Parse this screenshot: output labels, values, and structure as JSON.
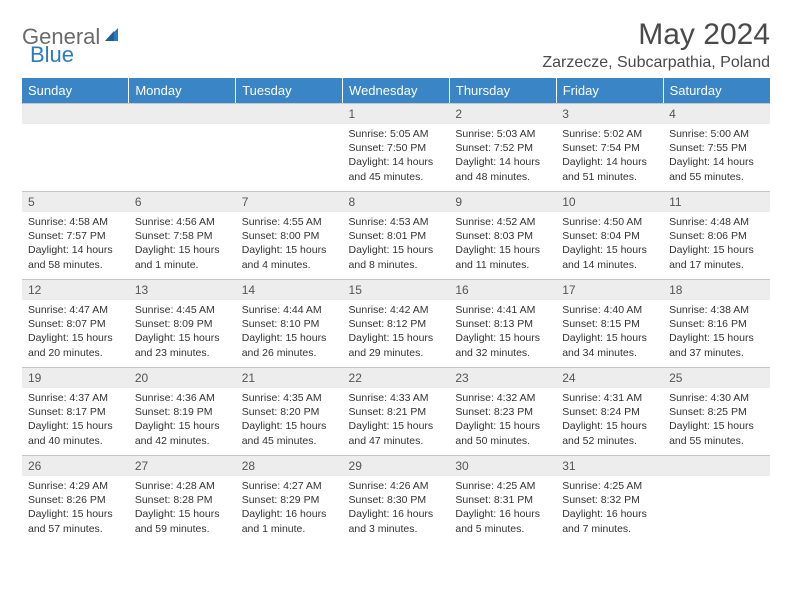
{
  "brand": {
    "general": "General",
    "blue": "Blue"
  },
  "title": "May 2024",
  "location": "Zarzecze, Subcarpathia, Poland",
  "dayHeaders": [
    "Sunday",
    "Monday",
    "Tuesday",
    "Wednesday",
    "Thursday",
    "Friday",
    "Saturday"
  ],
  "colors": {
    "headerBg": "#3a85c6",
    "headerText": "#ffffff",
    "dayNumBg": "#ededed",
    "bodyText": "#333333",
    "titleText": "#4a4a4a",
    "logoGray": "#6b6b6b",
    "logoBlue": "#2c7bbf"
  },
  "grid": [
    [
      null,
      null,
      null,
      {
        "n": "1",
        "sr": "Sunrise: 5:05 AM",
        "ss": "Sunset: 7:50 PM",
        "d1": "Daylight: 14 hours",
        "d2": "and 45 minutes."
      },
      {
        "n": "2",
        "sr": "Sunrise: 5:03 AM",
        "ss": "Sunset: 7:52 PM",
        "d1": "Daylight: 14 hours",
        "d2": "and 48 minutes."
      },
      {
        "n": "3",
        "sr": "Sunrise: 5:02 AM",
        "ss": "Sunset: 7:54 PM",
        "d1": "Daylight: 14 hours",
        "d2": "and 51 minutes."
      },
      {
        "n": "4",
        "sr": "Sunrise: 5:00 AM",
        "ss": "Sunset: 7:55 PM",
        "d1": "Daylight: 14 hours",
        "d2": "and 55 minutes."
      }
    ],
    [
      {
        "n": "5",
        "sr": "Sunrise: 4:58 AM",
        "ss": "Sunset: 7:57 PM",
        "d1": "Daylight: 14 hours",
        "d2": "and 58 minutes."
      },
      {
        "n": "6",
        "sr": "Sunrise: 4:56 AM",
        "ss": "Sunset: 7:58 PM",
        "d1": "Daylight: 15 hours",
        "d2": "and 1 minute."
      },
      {
        "n": "7",
        "sr": "Sunrise: 4:55 AM",
        "ss": "Sunset: 8:00 PM",
        "d1": "Daylight: 15 hours",
        "d2": "and 4 minutes."
      },
      {
        "n": "8",
        "sr": "Sunrise: 4:53 AM",
        "ss": "Sunset: 8:01 PM",
        "d1": "Daylight: 15 hours",
        "d2": "and 8 minutes."
      },
      {
        "n": "9",
        "sr": "Sunrise: 4:52 AM",
        "ss": "Sunset: 8:03 PM",
        "d1": "Daylight: 15 hours",
        "d2": "and 11 minutes."
      },
      {
        "n": "10",
        "sr": "Sunrise: 4:50 AM",
        "ss": "Sunset: 8:04 PM",
        "d1": "Daylight: 15 hours",
        "d2": "and 14 minutes."
      },
      {
        "n": "11",
        "sr": "Sunrise: 4:48 AM",
        "ss": "Sunset: 8:06 PM",
        "d1": "Daylight: 15 hours",
        "d2": "and 17 minutes."
      }
    ],
    [
      {
        "n": "12",
        "sr": "Sunrise: 4:47 AM",
        "ss": "Sunset: 8:07 PM",
        "d1": "Daylight: 15 hours",
        "d2": "and 20 minutes."
      },
      {
        "n": "13",
        "sr": "Sunrise: 4:45 AM",
        "ss": "Sunset: 8:09 PM",
        "d1": "Daylight: 15 hours",
        "d2": "and 23 minutes."
      },
      {
        "n": "14",
        "sr": "Sunrise: 4:44 AM",
        "ss": "Sunset: 8:10 PM",
        "d1": "Daylight: 15 hours",
        "d2": "and 26 minutes."
      },
      {
        "n": "15",
        "sr": "Sunrise: 4:42 AM",
        "ss": "Sunset: 8:12 PM",
        "d1": "Daylight: 15 hours",
        "d2": "and 29 minutes."
      },
      {
        "n": "16",
        "sr": "Sunrise: 4:41 AM",
        "ss": "Sunset: 8:13 PM",
        "d1": "Daylight: 15 hours",
        "d2": "and 32 minutes."
      },
      {
        "n": "17",
        "sr": "Sunrise: 4:40 AM",
        "ss": "Sunset: 8:15 PM",
        "d1": "Daylight: 15 hours",
        "d2": "and 34 minutes."
      },
      {
        "n": "18",
        "sr": "Sunrise: 4:38 AM",
        "ss": "Sunset: 8:16 PM",
        "d1": "Daylight: 15 hours",
        "d2": "and 37 minutes."
      }
    ],
    [
      {
        "n": "19",
        "sr": "Sunrise: 4:37 AM",
        "ss": "Sunset: 8:17 PM",
        "d1": "Daylight: 15 hours",
        "d2": "and 40 minutes."
      },
      {
        "n": "20",
        "sr": "Sunrise: 4:36 AM",
        "ss": "Sunset: 8:19 PM",
        "d1": "Daylight: 15 hours",
        "d2": "and 42 minutes."
      },
      {
        "n": "21",
        "sr": "Sunrise: 4:35 AM",
        "ss": "Sunset: 8:20 PM",
        "d1": "Daylight: 15 hours",
        "d2": "and 45 minutes."
      },
      {
        "n": "22",
        "sr": "Sunrise: 4:33 AM",
        "ss": "Sunset: 8:21 PM",
        "d1": "Daylight: 15 hours",
        "d2": "and 47 minutes."
      },
      {
        "n": "23",
        "sr": "Sunrise: 4:32 AM",
        "ss": "Sunset: 8:23 PM",
        "d1": "Daylight: 15 hours",
        "d2": "and 50 minutes."
      },
      {
        "n": "24",
        "sr": "Sunrise: 4:31 AM",
        "ss": "Sunset: 8:24 PM",
        "d1": "Daylight: 15 hours",
        "d2": "and 52 minutes."
      },
      {
        "n": "25",
        "sr": "Sunrise: 4:30 AM",
        "ss": "Sunset: 8:25 PM",
        "d1": "Daylight: 15 hours",
        "d2": "and 55 minutes."
      }
    ],
    [
      {
        "n": "26",
        "sr": "Sunrise: 4:29 AM",
        "ss": "Sunset: 8:26 PM",
        "d1": "Daylight: 15 hours",
        "d2": "and 57 minutes."
      },
      {
        "n": "27",
        "sr": "Sunrise: 4:28 AM",
        "ss": "Sunset: 8:28 PM",
        "d1": "Daylight: 15 hours",
        "d2": "and 59 minutes."
      },
      {
        "n": "28",
        "sr": "Sunrise: 4:27 AM",
        "ss": "Sunset: 8:29 PM",
        "d1": "Daylight: 16 hours",
        "d2": "and 1 minute."
      },
      {
        "n": "29",
        "sr": "Sunrise: 4:26 AM",
        "ss": "Sunset: 8:30 PM",
        "d1": "Daylight: 16 hours",
        "d2": "and 3 minutes."
      },
      {
        "n": "30",
        "sr": "Sunrise: 4:25 AM",
        "ss": "Sunset: 8:31 PM",
        "d1": "Daylight: 16 hours",
        "d2": "and 5 minutes."
      },
      {
        "n": "31",
        "sr": "Sunrise: 4:25 AM",
        "ss": "Sunset: 8:32 PM",
        "d1": "Daylight: 16 hours",
        "d2": "and 7 minutes."
      },
      null
    ]
  ]
}
